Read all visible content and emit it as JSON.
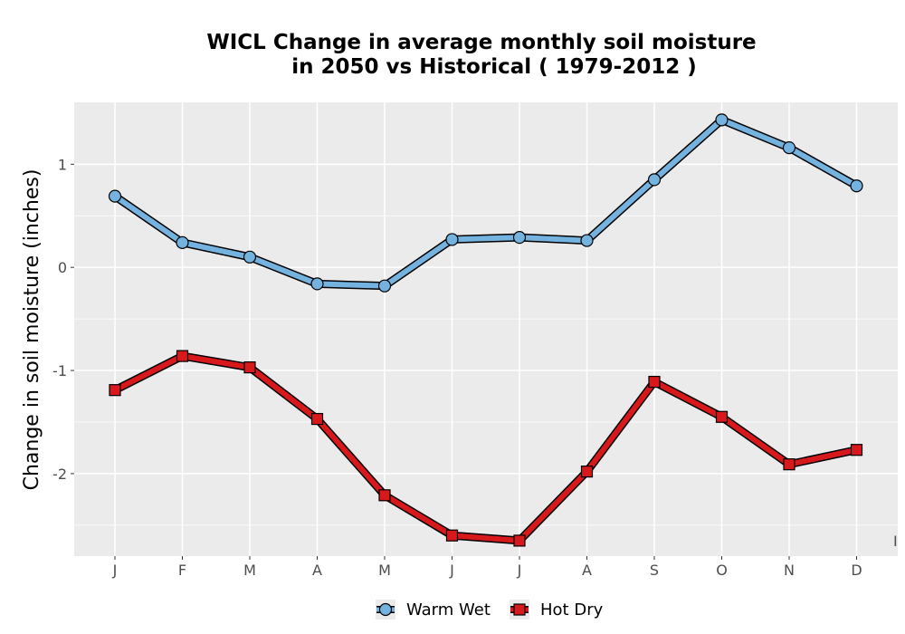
{
  "chart_data": {
    "type": "line",
    "title_line1": "WICL  Change in average monthly soil moisture",
    "title_line2": "in 2050 vs Historical ( 1979-2012 )",
    "xlabel": "",
    "ylabel": "Change in soil moisture (inches)",
    "categories": [
      "J",
      "F",
      "M",
      "A",
      "M",
      "J",
      "J",
      "A",
      "S",
      "O",
      "N",
      "D"
    ],
    "ylim": [
      -2.8,
      1.6
    ],
    "yticks": [
      -2,
      -1,
      0,
      1
    ],
    "grid": true,
    "legend_position": "bottom",
    "stray_mark": "I",
    "series": [
      {
        "name": "Warm Wet",
        "color": "#74b3e0",
        "marker": "circle",
        "values": [
          0.69,
          0.24,
          0.1,
          -0.16,
          -0.18,
          0.27,
          0.29,
          0.26,
          0.85,
          1.43,
          1.16,
          0.79
        ]
      },
      {
        "name": "Hot Dry",
        "color": "#d7191c",
        "marker": "square",
        "values": [
          -1.19,
          -0.86,
          -0.97,
          -1.47,
          -2.21,
          -2.6,
          -2.65,
          -1.98,
          -1.11,
          -1.45,
          -1.91,
          -1.77
        ]
      }
    ]
  }
}
